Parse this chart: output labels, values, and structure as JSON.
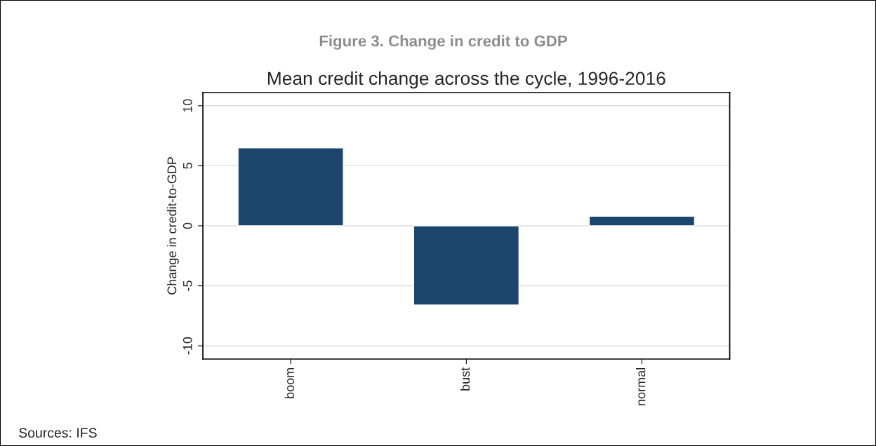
{
  "chart_data": {
    "type": "bar",
    "title": "Figure 3. Change in credit to GDP",
    "subtitle": "Mean credit change across the cycle, 1996-2016",
    "ylabel": "Change in credit-to-GDP",
    "categories": [
      "boom",
      "bust",
      "normal"
    ],
    "series": [
      {
        "color": "#1d466f",
        "values": [
          6.5,
          -6.6,
          0.8
        ]
      }
    ],
    "ylim": [
      -11.1,
      11.1
    ],
    "yticks": [
      -10,
      -5,
      0,
      5,
      10
    ],
    "grid": "y",
    "annotations": [
      "Sources: IFS"
    ]
  }
}
